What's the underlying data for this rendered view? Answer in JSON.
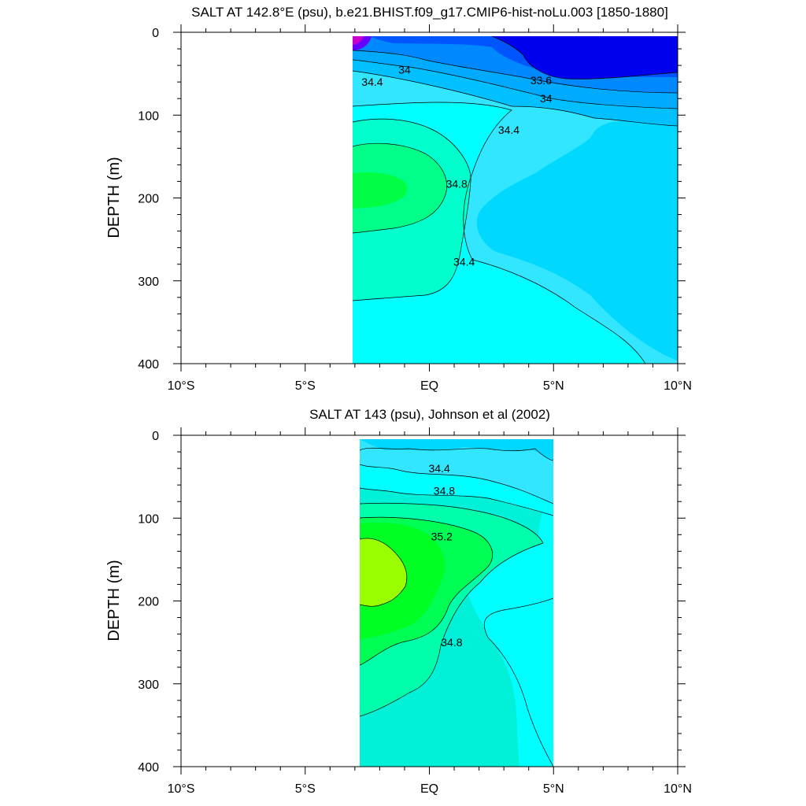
{
  "chart_data": [
    {
      "type": "heatmap",
      "title": "SALT AT 142.8°E (psu), b.e21.BHIST.f09_g17.CMIP6-hist-noLu.003 [1850-1880]",
      "ylabel": "DEPTH (m)",
      "xlabel": "",
      "xlim": [
        -10,
        10
      ],
      "ylim": [
        400,
        0
      ],
      "x_ticks": [
        -10,
        -5,
        0,
        5,
        10
      ],
      "x_tick_labels": [
        "10°S",
        "5°S",
        "EQ",
        "5°N",
        "10°N"
      ],
      "y_ticks": [
        0,
        100,
        200,
        300,
        400
      ],
      "y_tick_labels": [
        "0",
        "100",
        "200",
        "300",
        "400"
      ],
      "data_xrange": [
        -3.1,
        10
      ],
      "data_yrange": [
        4,
        400
      ],
      "grid": false,
      "colors": {
        "c33_2": "#0000ee",
        "c33_4": "#0055ff",
        "c33_6": "#0088ff",
        "c33_8": "#00aaff",
        "c34_0": "#00c0ff",
        "c34_2": "#00d8ff",
        "c34_4": "#32e6ff",
        "c34_6": "#00ffff",
        "c34_8": "#00ffcc",
        "c35_0": "#00ff88",
        "c35_2": "#00ff44",
        "c35_4": "#99ff00",
        "purple": "#cc00cc",
        "violet": "#6600ff"
      },
      "contour_labels": [
        {
          "text": "34",
          "x": -1.0,
          "y": 45
        },
        {
          "text": "34.4",
          "x": -2.3,
          "y": 60
        },
        {
          "text": "33.6",
          "x": 4.5,
          "y": 58
        },
        {
          "text": "34",
          "x": 4.7,
          "y": 80
        },
        {
          "text": "34.4",
          "x": 3.2,
          "y": 118
        },
        {
          "text": "34.8",
          "x": 1.1,
          "y": 183
        },
        {
          "text": "34.4",
          "x": 1.4,
          "y": 277
        }
      ]
    },
    {
      "type": "heatmap",
      "title": "SALT AT 143 (psu), Johnson et al (2002)",
      "ylabel": "DEPTH (m)",
      "xlabel": "",
      "xlim": [
        -10,
        10
      ],
      "ylim": [
        400,
        0
      ],
      "x_ticks": [
        -10,
        -5,
        0,
        5,
        10
      ],
      "x_tick_labels": [
        "10°S",
        "5°S",
        "EQ",
        "5°N",
        "10°N"
      ],
      "y_ticks": [
        0,
        100,
        200,
        300,
        400
      ],
      "y_tick_labels": [
        "0",
        "100",
        "200",
        "300",
        "400"
      ],
      "data_xrange": [
        -2.8,
        5
      ],
      "data_yrange": [
        5,
        400
      ],
      "grid": false,
      "colors": {
        "c34_2": "#00d8ff",
        "c34_4": "#32e6ff",
        "c34_6": "#00ffff",
        "c34_8": "#00f0d8",
        "c35_0": "#00ffaa",
        "c35_2": "#00ff55",
        "c35_4": "#00ff22",
        "c35_6": "#99ff00"
      },
      "contour_labels": [
        {
          "text": "34.4",
          "x": 0.4,
          "y": 40
        },
        {
          "text": "34.8",
          "x": 0.6,
          "y": 67
        },
        {
          "text": "35.2",
          "x": 0.5,
          "y": 122
        },
        {
          "text": "34.8",
          "x": 0.9,
          "y": 250
        }
      ]
    }
  ]
}
